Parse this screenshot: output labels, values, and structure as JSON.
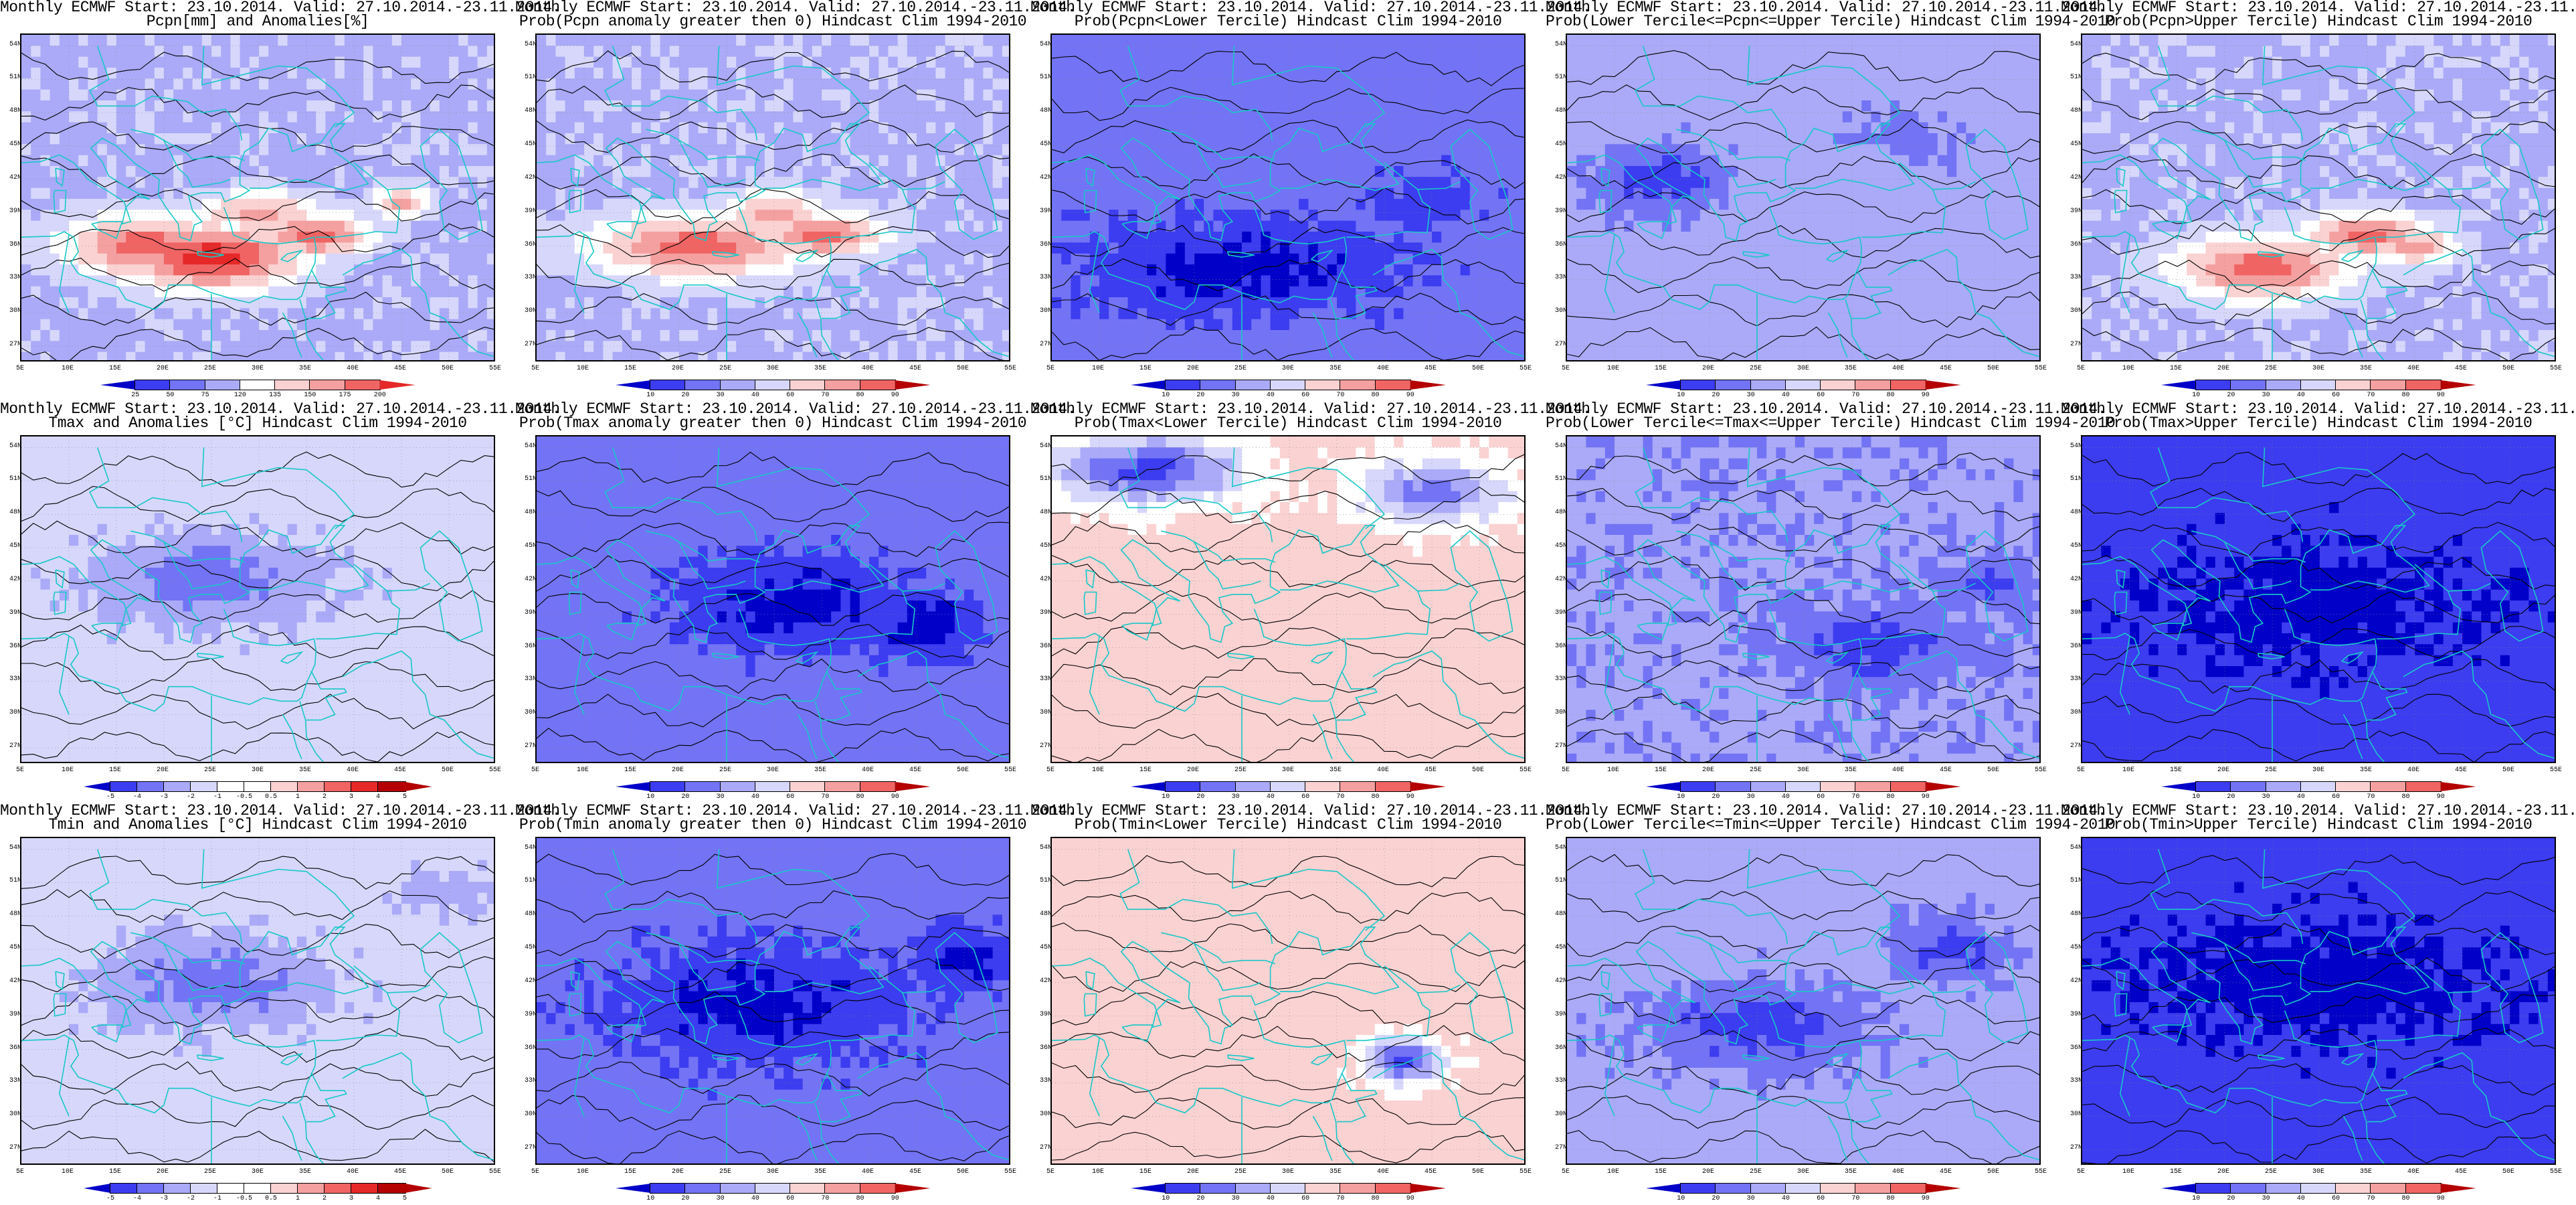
{
  "title_line1": "Monthly ECMWF Start: 23.10.2014. Valid: 27.10.2014.-23.11.2014.",
  "lat_labels": [
    "54N",
    "51N",
    "48N",
    "45N",
    "42N",
    "39N",
    "36N",
    "33N",
    "30N",
    "27N"
  ],
  "lon_labels": [
    "5E",
    "10E",
    "15E",
    "20E",
    "25E",
    "30E",
    "35E",
    "40E",
    "45E",
    "50E",
    "55E"
  ],
  "colors": {
    "blue_dark": "#0000c8",
    "blue": "#3c3cf0",
    "blue_mid": "#7373f5",
    "blue_light": "#aaaaf8",
    "blue_pale": "#d7d7fb",
    "white": "#ffffff",
    "red_pale": "#fbd2d2",
    "red_light": "#f5a0a0",
    "red_mid": "#f06464",
    "red": "#e62828",
    "red_dark": "#b40000",
    "coast": "#18c8c8",
    "contour": "#000000"
  },
  "colorbars": {
    "pcpn": [
      "25",
      "50",
      "75",
      "120",
      "135",
      "150",
      "175",
      "200"
    ],
    "prob": [
      "10",
      "20",
      "30",
      "40",
      "60",
      "70",
      "80",
      "90"
    ],
    "temp": [
      "-5",
      "-4",
      "-3",
      "-2",
      "-1",
      "-0.5",
      "0.5",
      "1",
      "2",
      "3",
      "4",
      "5"
    ]
  },
  "panels": [
    {
      "line2": "Pcpn[mm] and Anomalies[%]",
      "pattern": "pcpn_anom",
      "cbar": "pcpn"
    },
    {
      "line2": "Prob(Pcpn anomaly greater then 0) Hindcast Clim 1994-2010",
      "pattern": "pcpn_pos",
      "cbar": "prob"
    },
    {
      "line2": "Prob(Pcpn<Lower Tercile) Hindcast Clim 1994-2010",
      "pattern": "pcpn_low",
      "cbar": "prob"
    },
    {
      "line2": "Prob(Lower Tercile<=Pcpn<=Upper Tercile) Hindcast Clim 1994-2010",
      "pattern": "pcpn_mid",
      "cbar": "prob"
    },
    {
      "line2": "Prob(Pcpn>Upper Tercile) Hindcast Clim 1994-2010",
      "pattern": "pcpn_up",
      "cbar": "prob"
    },
    {
      "line2": "Tmax and Anomalies [°C] Hindcast Clim 1994-2010",
      "pattern": "tmax_anom",
      "cbar": "temp"
    },
    {
      "line2": "Prob(Tmax anomaly greater then 0) Hindcast Clim 1994-2010",
      "pattern": "tmax_pos",
      "cbar": "prob"
    },
    {
      "line2": "Prob(Tmax<Lower Tercile) Hindcast Clim 1994-2010",
      "pattern": "tmax_low",
      "cbar": "prob"
    },
    {
      "line2": "Prob(Lower Tercile<=Tmax<=Upper Tercile) Hindcast Clim 1994-2010",
      "pattern": "tmax_mid",
      "cbar": "prob"
    },
    {
      "line2": "Prob(Tmax>Upper Tercile) Hindcast Clim 1994-2010",
      "pattern": "tmax_up",
      "cbar": "prob"
    },
    {
      "line2": "Tmin and Anomalies [°C] Hindcast Clim 1994-2010",
      "pattern": "tmin_anom",
      "cbar": "temp"
    },
    {
      "line2": "Prob(Tmin anomaly greater then 0) Hindcast Clim 1994-2010",
      "pattern": "tmin_pos",
      "cbar": "prob"
    },
    {
      "line2": "Prob(Tmin<Lower Tercile) Hindcast Clim 1994-2010",
      "pattern": "tmin_low",
      "cbar": "prob"
    },
    {
      "line2": "Prob(Lower Tercile<=Tmin<=Upper Tercile) Hindcast Clim 1994-2010",
      "pattern": "tmin_mid",
      "cbar": "prob"
    },
    {
      "line2": "Prob(Tmin>Upper Tercile) Hindcast Clim 1994-2010",
      "pattern": "tmin_up",
      "cbar": "prob"
    }
  ]
}
